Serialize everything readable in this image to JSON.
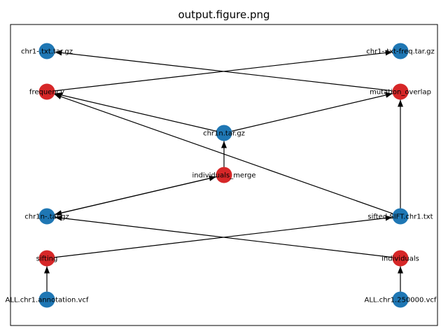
{
  "title": "output.figure.png",
  "colors": {
    "file": "#1f77b4",
    "job": "#d62728",
    "edge": "#000000",
    "frame": "#000000"
  },
  "nodes": [
    {
      "id": "n1",
      "label": "chr1-.txt.tar.gz",
      "kind": "file"
    },
    {
      "id": "n2",
      "label": "chr1-.txt-freq.tar.gz",
      "kind": "file"
    },
    {
      "id": "n3",
      "label": "frequency",
      "kind": "job"
    },
    {
      "id": "n4",
      "label": "mutation_overlap",
      "kind": "job"
    },
    {
      "id": "n5",
      "label": "chr1n.tar.gz",
      "kind": "file"
    },
    {
      "id": "n6",
      "label": "individuals_merge",
      "kind": "job"
    },
    {
      "id": "n7",
      "label": "chr1n-.tar.gz",
      "kind": "file"
    },
    {
      "id": "n8",
      "label": "sifted.SIFT.chr1.txt",
      "kind": "file"
    },
    {
      "id": "n9",
      "label": "sifting",
      "kind": "job"
    },
    {
      "id": "n10",
      "label": "individuals",
      "kind": "job"
    },
    {
      "id": "n11",
      "label": "ALL.chr1.annotation.vcf",
      "kind": "file"
    },
    {
      "id": "n12",
      "label": "ALL.chr1.250000.vcf",
      "kind": "file"
    }
  ],
  "edges": [
    [
      "n4",
      "n1"
    ],
    [
      "n3",
      "n2"
    ],
    [
      "n5",
      "n3"
    ],
    [
      "n8",
      "n3"
    ],
    [
      "n5",
      "n4"
    ],
    [
      "n8",
      "n4"
    ],
    [
      "n6",
      "n5"
    ],
    [
      "n7",
      "n6"
    ],
    [
      "n6",
      "n7"
    ],
    [
      "n10",
      "n7"
    ],
    [
      "n9",
      "n8"
    ],
    [
      "n11",
      "n9"
    ],
    [
      "n12",
      "n10"
    ]
  ]
}
